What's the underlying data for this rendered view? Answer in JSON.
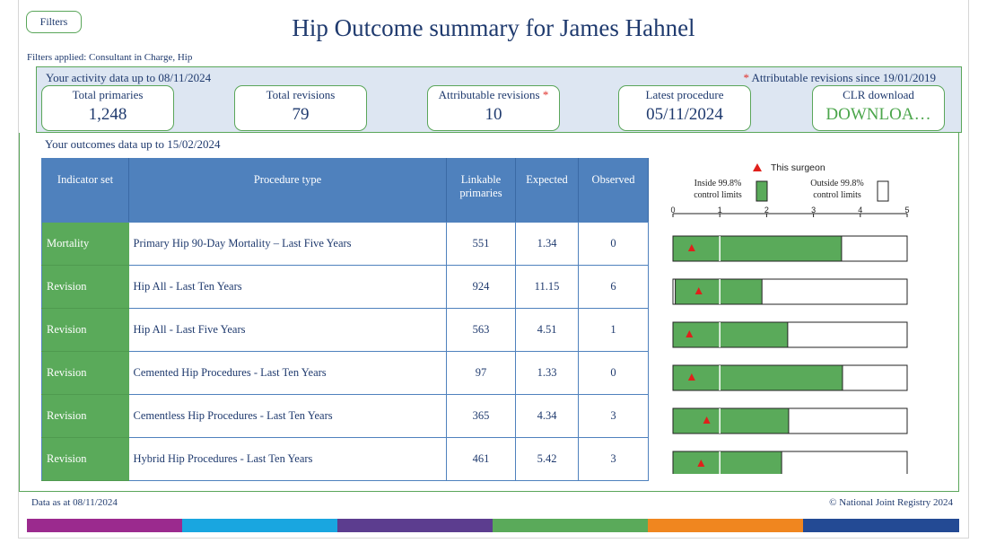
{
  "header": {
    "filters_button": "Filters",
    "title": "Hip Outcome summary for James Hahnel",
    "filters_applied": "Filters applied: Consultant in Charge, Hip"
  },
  "activity": {
    "label": "Your activity data up to 08/11/2024",
    "attributable_note": "Attributable revisions since 19/01/2019",
    "note_star": "*",
    "cards": [
      {
        "label": "Total primaries",
        "value": "1,248"
      },
      {
        "label": "Total revisions",
        "value": "79"
      },
      {
        "label": "Attributable revisions",
        "value": "10",
        "star": "*"
      },
      {
        "label": "Latest procedure",
        "value": "05/11/2024"
      },
      {
        "label": "CLR download",
        "value": "DOWNLOA…"
      }
    ]
  },
  "outcomes": {
    "label": "Your outcomes data up to 15/02/2024",
    "columns": [
      "Indicator set",
      "Procedure type",
      "Linkable primaries",
      "Expected",
      "Observed"
    ],
    "rows": [
      {
        "set": "Mortality",
        "type": "Primary Hip 90-Day Mortality – Last Five Years",
        "linkable": "551",
        "expected": "1.34",
        "observed": "0"
      },
      {
        "set": "Revision",
        "type": "Hip All - Last Ten Years",
        "linkable": "924",
        "expected": "11.15",
        "observed": "6"
      },
      {
        "set": "Revision",
        "type": "Hip All - Last Five Years",
        "linkable": "563",
        "expected": "4.51",
        "observed": "1"
      },
      {
        "set": "Revision",
        "type": "Cemented Hip Procedures - Last Ten Years",
        "linkable": "97",
        "expected": "1.33",
        "observed": "0"
      },
      {
        "set": "Revision",
        "type": "Cementless Hip Procedures - Last Ten Years",
        "linkable": "365",
        "expected": "4.34",
        "observed": "3"
      },
      {
        "set": "Revision",
        "type": "Hybrid Hip Procedures - Last Ten Years",
        "linkable": "461",
        "expected": "5.42",
        "observed": "3"
      }
    ]
  },
  "legend": {
    "this_surgeon": "This surgeon",
    "inside": "Inside 99.8% control limits",
    "outside": "Outside 99.8% control limits"
  },
  "chart_data": {
    "type": "bar",
    "xlim": [
      0,
      5
    ],
    "ticks": [
      "0",
      "1",
      "2",
      "3",
      "4",
      "5"
    ],
    "reference_line": 1,
    "rows": [
      {
        "upper_limit": 3.6,
        "lower_limit": 0,
        "surgeon": 0.4
      },
      {
        "upper_limit": 1.9,
        "lower_limit": 0.05,
        "surgeon": 0.55
      },
      {
        "upper_limit": 2.45,
        "lower_limit": 0,
        "surgeon": 0.35
      },
      {
        "upper_limit": 3.62,
        "lower_limit": 0,
        "surgeon": 0.4
      },
      {
        "upper_limit": 2.47,
        "lower_limit": 0,
        "surgeon": 0.72
      },
      {
        "upper_limit": 2.32,
        "lower_limit": 0,
        "surgeon": 0.6
      }
    ],
    "colors": {
      "inside": "#5aaa5a",
      "marker": "#e0201b"
    }
  },
  "footer": {
    "data_as_at": "Data as at 08/11/2024",
    "copyright": "© National Joint Registry 2024",
    "stripe_colors": [
      "#9b2a8e",
      "#19a6e0",
      "#5c3d8f",
      "#5aaa5a",
      "#f0861f",
      "#234a94"
    ]
  }
}
